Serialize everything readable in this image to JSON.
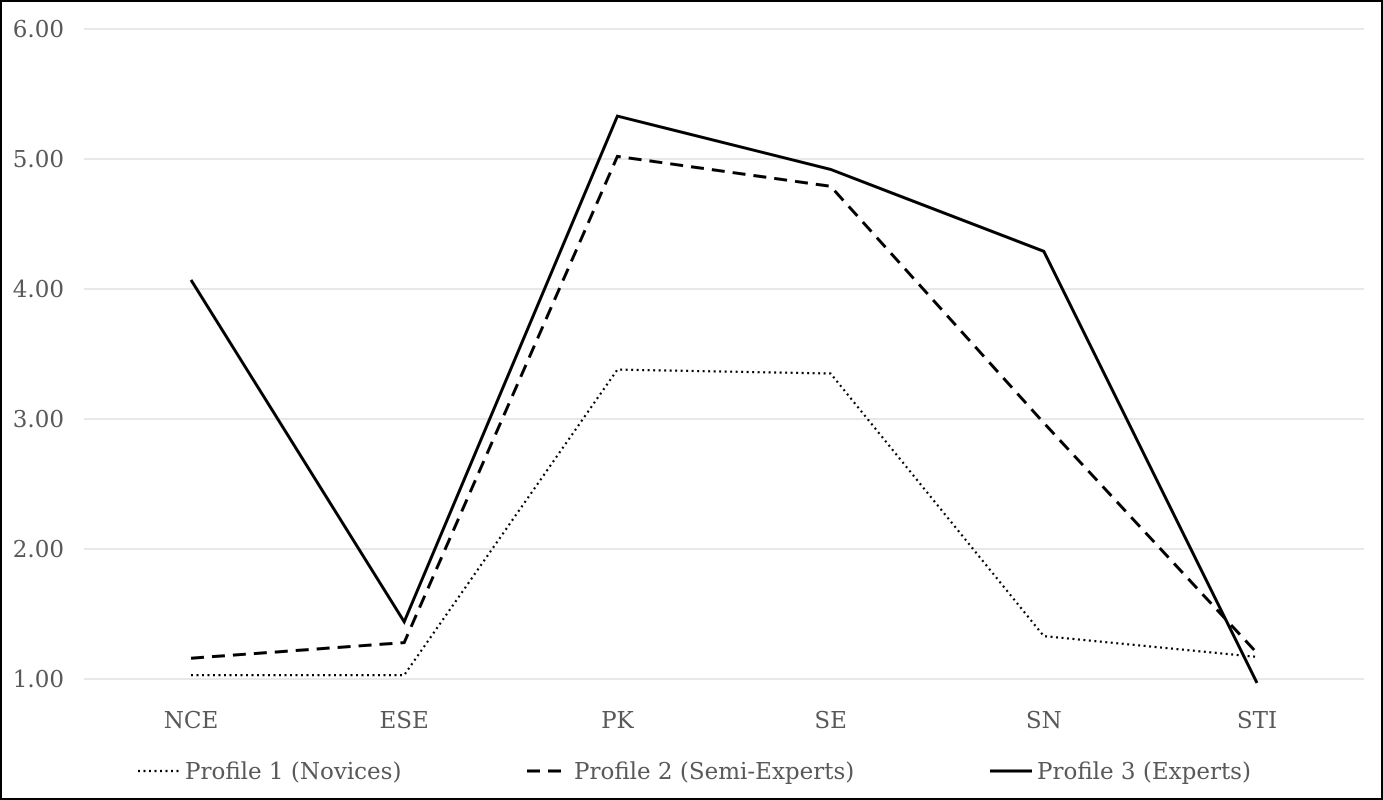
{
  "chart_data": {
    "type": "line",
    "categories": [
      "NCE",
      "ESE",
      "PK",
      "SE",
      "SN",
      "STI"
    ],
    "y_ticks": [
      "1.00",
      "2.00",
      "3.00",
      "4.00",
      "5.00",
      "6.00"
    ],
    "ylim": [
      1,
      6
    ],
    "grid": true,
    "legend_position": "bottom",
    "series": [
      {
        "name": "Profile 1 (Novices)",
        "line_style": "dotted",
        "color": "#000000",
        "values": [
          1.03,
          1.03,
          3.38,
          3.35,
          1.33,
          1.17
        ]
      },
      {
        "name": "Profile 2 (Semi-Experts)",
        "line_style": "dashed",
        "color": "#000000",
        "values": [
          1.16,
          1.28,
          5.02,
          4.79,
          2.97,
          1.2
        ]
      },
      {
        "name": "Profile 3 (Experts)",
        "line_style": "solid",
        "color": "#000000",
        "values": [
          4.07,
          1.44,
          5.33,
          4.92,
          4.29,
          0.97
        ]
      }
    ],
    "gridline_color": "#d9d9d9",
    "text_color": "#595959"
  }
}
